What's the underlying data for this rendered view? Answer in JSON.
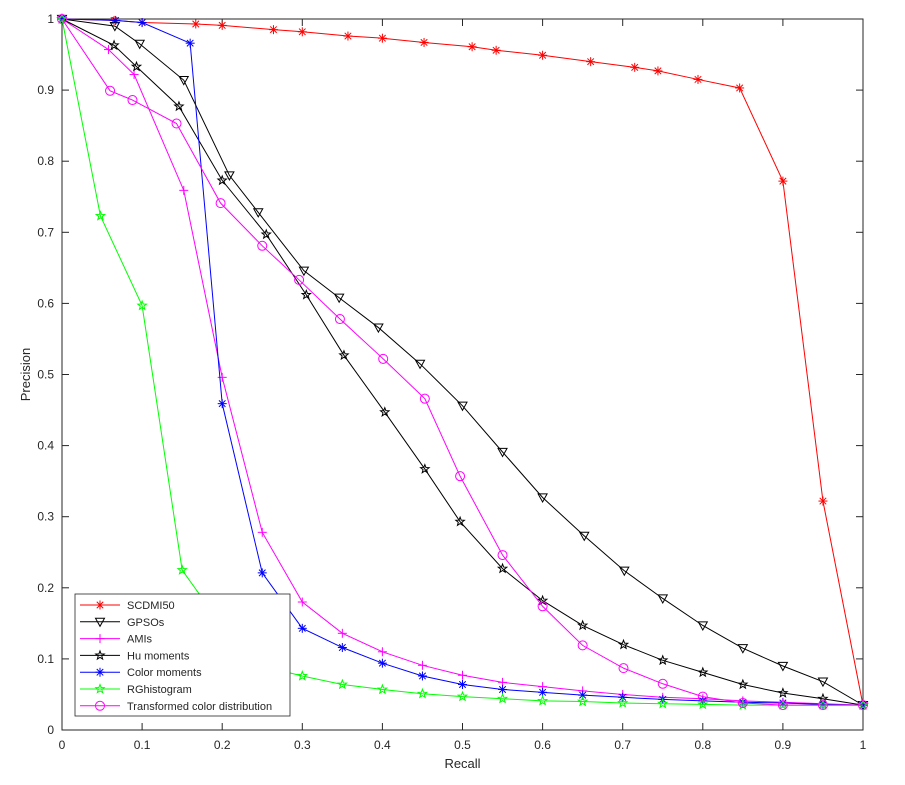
{
  "chart_data": {
    "type": "line",
    "xlabel": "Recall",
    "ylabel": "Precision",
    "xlim": [
      0,
      1
    ],
    "ylim": [
      0,
      1
    ],
    "xticks": [
      "0",
      "0.1",
      "0.2",
      "0.3",
      "0.4",
      "0.5",
      "0.6",
      "0.7",
      "0.8",
      "0.9",
      "1"
    ],
    "yticks": [
      "0",
      "0.1",
      "0.2",
      "0.3",
      "0.4",
      "0.5",
      "0.6",
      "0.7",
      "0.8",
      "0.9",
      "1"
    ],
    "grid": false,
    "legend_position": "bottom-left",
    "series": [
      {
        "name": "SCDMI50",
        "color": "#ff0000",
        "marker": "asterisk",
        "x": [
          0,
          0.065,
          0.1,
          0.167,
          0.2,
          0.264,
          0.3,
          0.357,
          0.4,
          0.452,
          0.512,
          0.542,
          0.6,
          0.66,
          0.715,
          0.744,
          0.794,
          0.846,
          0.9,
          0.95,
          1
        ],
        "y": [
          1,
          0.998,
          0.995,
          0.993,
          0.991,
          0.985,
          0.982,
          0.976,
          0.973,
          0.967,
          0.961,
          0.956,
          0.949,
          0.94,
          0.932,
          0.927,
          0.915,
          0.903,
          0.772,
          0.322,
          0.035
        ]
      },
      {
        "name": "GPSOs",
        "color": "#000000",
        "marker": "triangle-down",
        "x": [
          0,
          0.066,
          0.097,
          0.152,
          0.209,
          0.245,
          0.302,
          0.346,
          0.395,
          0.447,
          0.5,
          0.55,
          0.6,
          0.652,
          0.702,
          0.75,
          0.8,
          0.85,
          0.9,
          0.95,
          1
        ],
        "y": [
          1,
          0.99,
          0.965,
          0.914,
          0.78,
          0.728,
          0.646,
          0.608,
          0.566,
          0.515,
          0.456,
          0.391,
          0.327,
          0.273,
          0.224,
          0.185,
          0.147,
          0.115,
          0.09,
          0.068,
          0.035
        ]
      },
      {
        "name": "AMIs",
        "color": "#ff00ff",
        "marker": "plus",
        "x": [
          0,
          0.058,
          0.09,
          0.152,
          0.2,
          0.25,
          0.3,
          0.35,
          0.4,
          0.45,
          0.5,
          0.55,
          0.6,
          0.65,
          0.7,
          0.75,
          0.8,
          0.85,
          0.9,
          0.95,
          1
        ],
        "y": [
          1,
          0.957,
          0.922,
          0.759,
          0.496,
          0.278,
          0.18,
          0.136,
          0.11,
          0.091,
          0.077,
          0.067,
          0.061,
          0.055,
          0.05,
          0.046,
          0.044,
          0.041,
          0.039,
          0.037,
          0.035
        ]
      },
      {
        "name": "Hu moments",
        "color": "#000000",
        "marker": "star",
        "x": [
          0,
          0.065,
          0.093,
          0.146,
          0.2,
          0.255,
          0.305,
          0.352,
          0.403,
          0.453,
          0.497,
          0.55,
          0.6,
          0.65,
          0.701,
          0.75,
          0.8,
          0.85,
          0.9,
          0.95,
          1
        ],
        "y": [
          1,
          0.963,
          0.933,
          0.877,
          0.773,
          0.697,
          0.612,
          0.527,
          0.447,
          0.367,
          0.293,
          0.227,
          0.182,
          0.147,
          0.12,
          0.098,
          0.081,
          0.064,
          0.052,
          0.044,
          0.035
        ]
      },
      {
        "name": "Color moments",
        "color": "#0000ff",
        "marker": "asterisk",
        "x": [
          0,
          0.067,
          0.1,
          0.16,
          0.2,
          0.25,
          0.3,
          0.35,
          0.4,
          0.45,
          0.5,
          0.55,
          0.6,
          0.65,
          0.7,
          0.75,
          0.8,
          0.85,
          0.9,
          0.95,
          1
        ],
        "y": [
          1,
          0.998,
          0.995,
          0.966,
          0.459,
          0.221,
          0.143,
          0.116,
          0.094,
          0.076,
          0.064,
          0.057,
          0.053,
          0.049,
          0.046,
          0.043,
          0.041,
          0.039,
          0.038,
          0.036,
          0.035
        ]
      },
      {
        "name": "RGhistogram",
        "color": "#00ff00",
        "marker": "star",
        "x": [
          0,
          0.048,
          0.1,
          0.15,
          0.2,
          0.25,
          0.3,
          0.35,
          0.4,
          0.45,
          0.5,
          0.55,
          0.6,
          0.65,
          0.7,
          0.75,
          0.8,
          0.85,
          0.9,
          0.95,
          1
        ],
        "y": [
          1,
          0.723,
          0.597,
          0.225,
          0.146,
          0.09,
          0.076,
          0.064,
          0.057,
          0.051,
          0.047,
          0.044,
          0.041,
          0.04,
          0.038,
          0.037,
          0.036,
          0.035,
          0.035,
          0.035,
          0.035
        ]
      },
      {
        "name": "Transformed color distribution",
        "color": "#ff00ff",
        "marker": "circle",
        "x": [
          0,
          0.06,
          0.088,
          0.143,
          0.198,
          0.25,
          0.296,
          0.347,
          0.401,
          0.453,
          0.497,
          0.55,
          0.6,
          0.65,
          0.701,
          0.75,
          0.8,
          0.85,
          0.9,
          0.95,
          1
        ],
        "y": [
          1,
          0.899,
          0.886,
          0.853,
          0.741,
          0.681,
          0.633,
          0.578,
          0.522,
          0.466,
          0.357,
          0.246,
          0.174,
          0.119,
          0.087,
          0.065,
          0.047,
          0.038,
          0.035,
          0.035,
          0.035
        ]
      }
    ]
  }
}
